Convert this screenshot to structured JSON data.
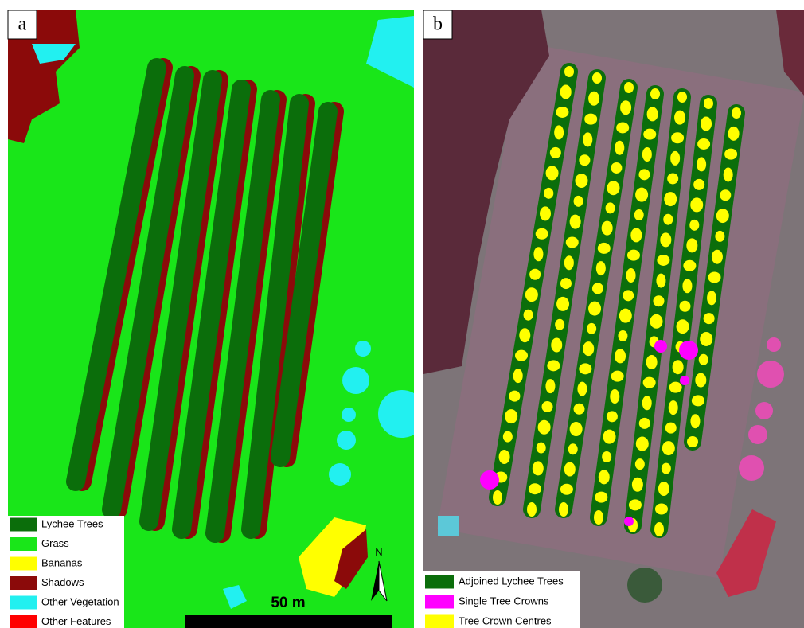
{
  "panels": [
    {
      "label": "a",
      "legend": [
        {
          "name": "Lychee Trees",
          "color": "#0b6e0b"
        },
        {
          "name": "Grass",
          "color": "#19e619"
        },
        {
          "name": "Bananas",
          "color": "#ffff00"
        },
        {
          "name": "Shadows",
          "color": "#8b0a0a"
        },
        {
          "name": "Other Vegetation",
          "color": "#22f0f0"
        },
        {
          "name": "Other Features",
          "color": "#ff0000"
        }
      ]
    },
    {
      "label": "b",
      "legend": [
        {
          "name": "Adjoined Lychee Trees",
          "color": "#0b6e0b"
        },
        {
          "name": "Single Tree Crowns",
          "color": "#ff00ff"
        },
        {
          "name": "Tree Crown Centres",
          "color": "#ffff00"
        }
      ]
    }
  ],
  "scale_bar": "50 m",
  "north": "N"
}
